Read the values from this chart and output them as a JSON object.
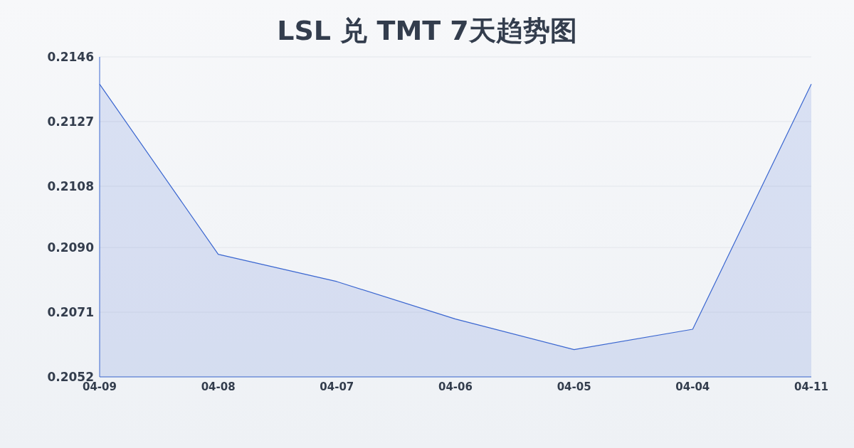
{
  "chart_data": {
    "type": "area",
    "title": "LSL 兑 TMT 7天趋势图",
    "categories": [
      "04-09",
      "04-08",
      "04-07",
      "04-06",
      "04-05",
      "04-04",
      "04-11"
    ],
    "values": [
      0.2138,
      0.2088,
      0.208,
      0.2069,
      0.206,
      0.2066,
      0.2138
    ],
    "color": "#3a66d0",
    "ylim": [
      0.2052,
      0.2146
    ],
    "yticks": [
      0.2052,
      0.2071,
      {
        "value": 0.209,
        "label": "0.2090"
      },
      0.2108,
      0.2127,
      0.2146
    ],
    "grid": "y"
  }
}
